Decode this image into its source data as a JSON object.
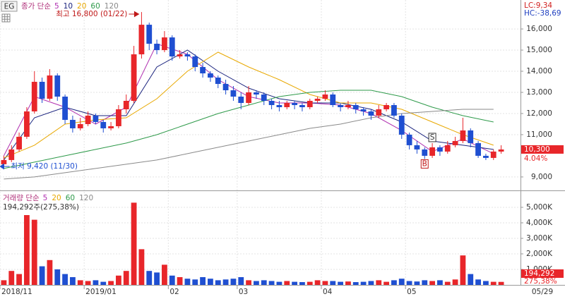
{
  "header": {
    "button": "EG",
    "lc": "LC:9,34",
    "hc": "HC:-38,69"
  },
  "chart_data": [
    {
      "type": "candlestick",
      "legend_label": "종가 단순",
      "open": [
        9600,
        9800,
        10300,
        10900,
        12100,
        13500,
        12700,
        13800,
        12800,
        11700,
        11300,
        11500,
        11900,
        11600,
        11300,
        11400,
        12200,
        12600,
        14800,
        16200,
        15300,
        15000,
        15600,
        14700,
        14800,
        14700,
        14200,
        13900,
        13700,
        13400,
        13100,
        12800,
        12500,
        13000,
        12900,
        12600,
        12400,
        12300,
        12500,
        12400,
        12300,
        12600,
        12700,
        12900,
        12400,
        12300,
        12400,
        12200,
        12100,
        11900,
        12200,
        12400,
        11900,
        11000,
        10500,
        10300,
        10000,
        10400,
        10200,
        10500,
        10700,
        11200,
        10600,
        10000,
        9900,
        10200
      ],
      "high": [
        10000,
        10500,
        11100,
        12300,
        14000,
        13700,
        14100,
        13900,
        12900,
        11900,
        11800,
        12100,
        12000,
        11700,
        11600,
        12400,
        12900,
        15200,
        16800,
        16300,
        15500,
        15900,
        15700,
        15000,
        14900,
        14800,
        14400,
        14000,
        13800,
        13600,
        13300,
        13000,
        13300,
        13100,
        13000,
        12700,
        12600,
        12600,
        12600,
        12500,
        12700,
        12800,
        13100,
        13000,
        12500,
        12600,
        12500,
        12300,
        12200,
        12400,
        12500,
        12500,
        12000,
        11100,
        10700,
        10400,
        10600,
        10500,
        10700,
        10900,
        11800,
        11300,
        10700,
        10100,
        10300,
        10500
      ],
      "low": [
        9420,
        9700,
        10200,
        10800,
        12000,
        12500,
        12600,
        12600,
        11500,
        11100,
        11200,
        11400,
        11500,
        11100,
        11200,
        11300,
        12000,
        12500,
        14600,
        15000,
        14800,
        14900,
        14500,
        14600,
        14500,
        14000,
        13700,
        13500,
        13200,
        12900,
        12600,
        12200,
        12400,
        12700,
        12400,
        12200,
        12100,
        12200,
        12200,
        12100,
        12200,
        12500,
        12600,
        12300,
        12100,
        12200,
        12000,
        11900,
        11700,
        11800,
        12100,
        11800,
        10800,
        10300,
        10100,
        9850,
        9900,
        10000,
        10100,
        10400,
        10600,
        10400,
        9900,
        9800,
        9800,
        10100
      ],
      "close": [
        9800,
        10300,
        10900,
        12100,
        13500,
        12700,
        13800,
        12800,
        11700,
        11300,
        11500,
        11900,
        11600,
        11300,
        11400,
        12200,
        12600,
        14800,
        16200,
        15300,
        15000,
        15600,
        14700,
        14800,
        14700,
        14200,
        13900,
        13700,
        13400,
        13100,
        12800,
        12500,
        13000,
        12900,
        12600,
        12400,
        12300,
        12500,
        12400,
        12300,
        12600,
        12700,
        12900,
        12400,
        12300,
        12400,
        12200,
        12100,
        11900,
        12200,
        12400,
        11900,
        11000,
        10500,
        10300,
        10000,
        10400,
        10200,
        10500,
        10700,
        11200,
        10600,
        10000,
        9900,
        10200,
        10300
      ],
      "up_color": "#e8262a",
      "down_color": "#1f4fd1",
      "ylim": [
        8430,
        17370
      ],
      "yticks": [
        {
          "value": 9000,
          "label": "9,000"
        },
        {
          "value": 11000,
          "label": "11,000"
        },
        {
          "value": 12000,
          "label": "12,000"
        },
        {
          "value": 13000,
          "label": "13,000"
        },
        {
          "value": 14000,
          "label": "14,000"
        },
        {
          "value": 15000,
          "label": "15,000"
        },
        {
          "value": 16000,
          "label": "16,000"
        }
      ],
      "ma_x": [
        0,
        4,
        8,
        12,
        16,
        20,
        24,
        28,
        32,
        36,
        40,
        44,
        48,
        52,
        56,
        60,
        64
      ],
      "series": [
        {
          "name": "5",
          "color": "#b030b0",
          "values": [
            10000,
            12800,
            12300,
            11500,
            12300,
            15300,
            14800,
            13600,
            12800,
            12500,
            12500,
            12400,
            12000,
            11200,
            10200,
            10800,
            10100
          ]
        },
        {
          "name": "10",
          "color": "#1a237e",
          "values": [
            9800,
            11800,
            12300,
            11900,
            11900,
            14200,
            15000,
            14000,
            13200,
            12700,
            12500,
            12500,
            12200,
            11600,
            10700,
            10500,
            10300
          ]
        },
        {
          "name": "20",
          "color": "#e8a800",
          "values": [
            9900,
            10500,
            11500,
            11700,
            11800,
            12700,
            14000,
            14900,
            14200,
            13600,
            12900,
            12500,
            12500,
            12200,
            11600,
            11000,
            10500
          ]
        },
        {
          "name": "60",
          "color": "#2e9a4a",
          "values": [
            9400,
            9700,
            10000,
            10300,
            10600,
            11000,
            11500,
            12000,
            12400,
            12800,
            13000,
            13100,
            13100,
            12800,
            12300,
            11900,
            11600
          ]
        },
        {
          "name": "120",
          "color": "#8a8a8a",
          "values": [
            8900,
            9000,
            9200,
            9400,
            9600,
            9800,
            10100,
            10400,
            10700,
            11000,
            11300,
            11500,
            11800,
            12000,
            12100,
            12200,
            12200
          ]
        }
      ],
      "high_label": "최고 16,800 (01/22)",
      "low_label": "최저 9,420 (11/30)",
      "signals": [
        {
          "label": "B",
          "index": 55
        },
        {
          "label": "S",
          "index": 56
        }
      ],
      "last_label": {
        "value": 10300,
        "label": "10,300"
      },
      "change_label": "4.04%"
    },
    {
      "type": "bar",
      "legend_label": "거래량 단순",
      "legend": [
        {
          "name": "5",
          "color": "#b030b0"
        },
        {
          "name": "20",
          "color": "#e8a800"
        },
        {
          "name": "60",
          "color": "#2e9a4a"
        },
        {
          "name": "120",
          "color": "#8a8a8a"
        }
      ],
      "info": "194,292주(275,38%)",
      "categories": [
        "2018/11",
        null,
        null,
        null,
        null,
        null,
        null,
        null,
        null,
        null,
        null,
        "2019/01",
        null,
        null,
        null,
        null,
        null,
        null,
        null,
        null,
        null,
        null,
        "02",
        null,
        null,
        null,
        null,
        null,
        null,
        null,
        null,
        "03",
        null,
        null,
        null,
        null,
        null,
        null,
        null,
        null,
        null,
        null,
        "04",
        null,
        null,
        null,
        null,
        null,
        null,
        null,
        null,
        null,
        null,
        "05",
        null,
        null,
        null,
        null,
        null,
        null,
        null,
        null,
        null,
        null,
        null,
        null
      ],
      "values": [
        300,
        900,
        700,
        4500,
        4200,
        1200,
        1600,
        1000,
        700,
        500,
        300,
        250,
        300,
        200,
        250,
        600,
        900,
        5300,
        2300,
        900,
        800,
        1300,
        600,
        500,
        400,
        350,
        500,
        400,
        300,
        350,
        400,
        500,
        300,
        250,
        300,
        250,
        200,
        250,
        200,
        180,
        200,
        300,
        250,
        250,
        200,
        220,
        180,
        200,
        250,
        300,
        200,
        300,
        400,
        250,
        220,
        300,
        250,
        300,
        200,
        350,
        1900,
        700,
        350,
        250,
        200,
        194.292
      ],
      "ylim": [
        0,
        6000
      ],
      "yticks": [
        {
          "value": 1000,
          "label": "1,000K"
        },
        {
          "value": 2000,
          "label": "2,000K"
        },
        {
          "value": 3000,
          "label": "3,000K"
        },
        {
          "value": 4000,
          "label": "4,000K"
        },
        {
          "value": 5000,
          "label": "5,000K"
        }
      ],
      "last_label": {
        "value": 194.292,
        "label": "194,292"
      },
      "ratio_label": "275,38%",
      "end_date": "05/29"
    }
  ]
}
